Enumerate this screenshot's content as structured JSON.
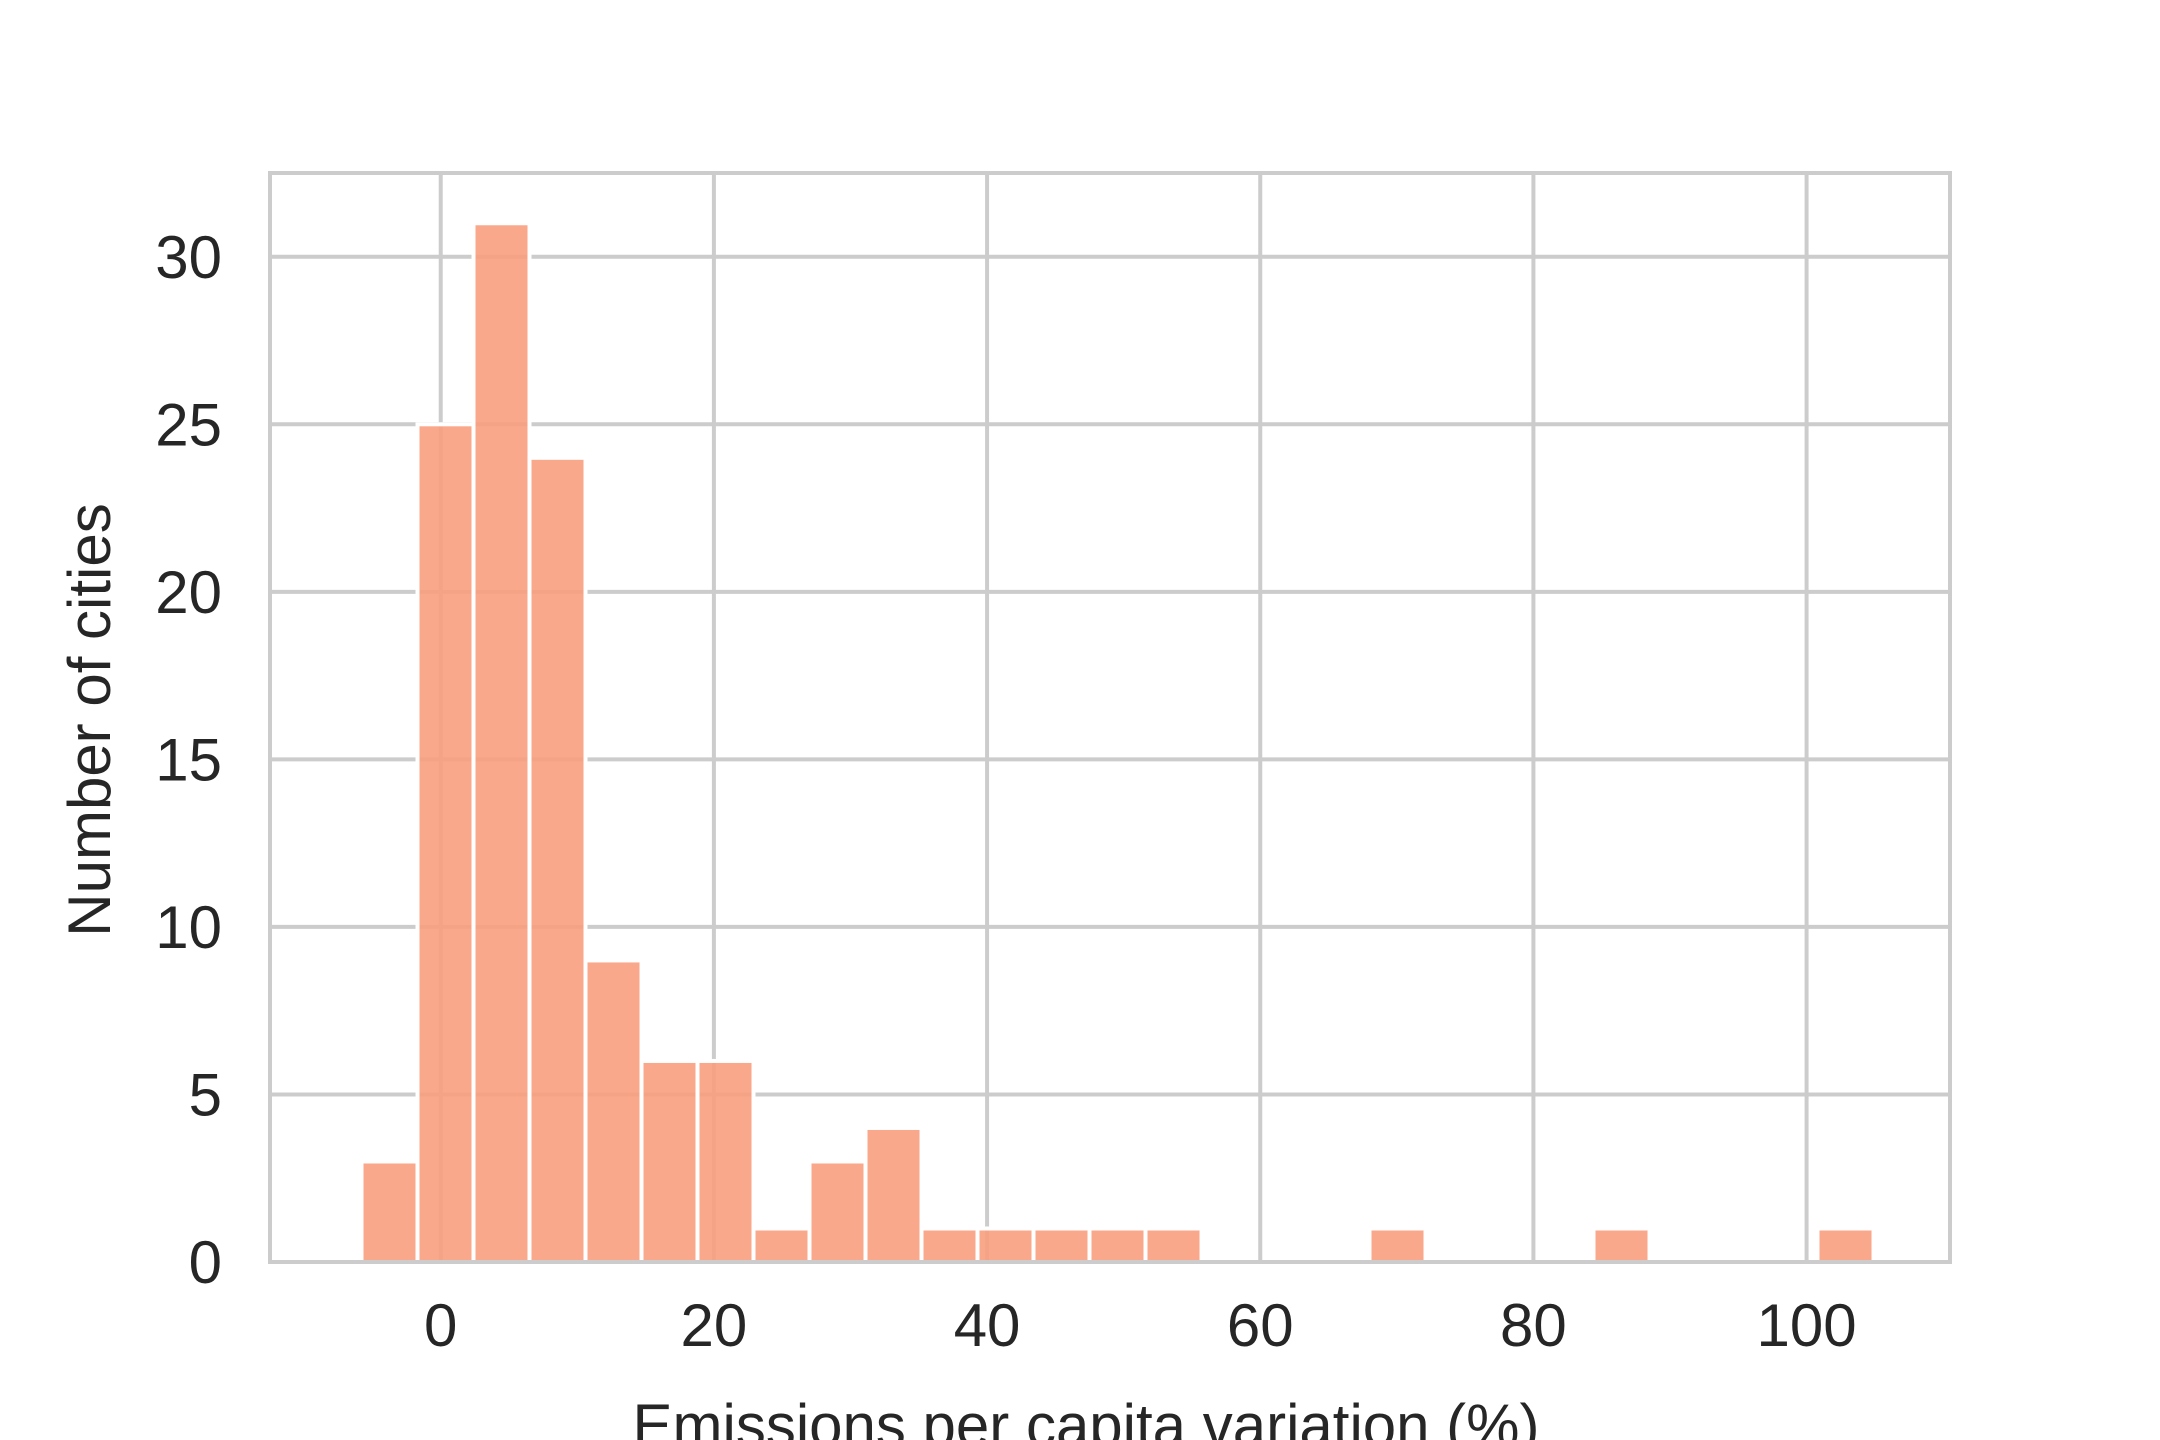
{
  "chart_data": {
    "type": "bar",
    "title": "",
    "xlabel": "Emissions per capita variation (%)",
    "ylabel": "Number of cities",
    "xlim": [
      -12.5,
      110.5
    ],
    "ylim": [
      0,
      32.5
    ],
    "xticks": [
      0,
      20,
      40,
      60,
      80,
      100
    ],
    "yticks": [
      0,
      5,
      10,
      15,
      20,
      25,
      30
    ],
    "grid": true,
    "legend": "none",
    "bin_width": 4.1,
    "bins": [
      {
        "x0": -5.8,
        "x1": -1.7,
        "count": 3
      },
      {
        "x0": -1.7,
        "x1": 2.4,
        "count": 25
      },
      {
        "x0": 2.4,
        "x1": 6.5,
        "count": 31
      },
      {
        "x0": 6.5,
        "x1": 10.6,
        "count": 24
      },
      {
        "x0": 10.6,
        "x1": 14.7,
        "count": 9
      },
      {
        "x0": 14.7,
        "x1": 18.8,
        "count": 6
      },
      {
        "x0": 18.8,
        "x1": 22.9,
        "count": 6
      },
      {
        "x0": 22.9,
        "x1": 27.0,
        "count": 1
      },
      {
        "x0": 27.0,
        "x1": 31.1,
        "count": 3
      },
      {
        "x0": 31.1,
        "x1": 35.2,
        "count": 4
      },
      {
        "x0": 35.2,
        "x1": 39.3,
        "count": 1
      },
      {
        "x0": 39.3,
        "x1": 43.4,
        "count": 1
      },
      {
        "x0": 43.4,
        "x1": 47.5,
        "count": 1
      },
      {
        "x0": 47.5,
        "x1": 51.6,
        "count": 1
      },
      {
        "x0": 51.6,
        "x1": 55.7,
        "count": 1
      },
      {
        "x0": 68.0,
        "x1": 72.1,
        "count": 1
      },
      {
        "x0": 84.4,
        "x1": 88.5,
        "count": 1
      },
      {
        "x0": 100.8,
        "x1": 104.9,
        "count": 1
      }
    ],
    "colors": {
      "bar_fill": "#fa9e7e",
      "bar_opacity": 0.9,
      "bar_edge": "#ffffff",
      "grid": "#cccccc",
      "spine": "#cccccc",
      "text": "#262626",
      "background": "#ffffff"
    }
  }
}
